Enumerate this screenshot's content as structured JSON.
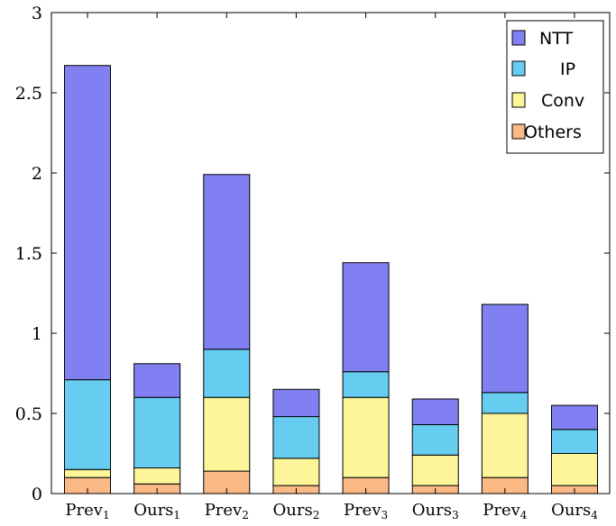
{
  "chart_data": {
    "type": "bar",
    "stacked": true,
    "categories": [
      {
        "base": "Prev",
        "sub": "1"
      },
      {
        "base": "Ours",
        "sub": "1"
      },
      {
        "base": "Prev",
        "sub": "2"
      },
      {
        "base": "Ours",
        "sub": "2"
      },
      {
        "base": "Prev",
        "sub": "3"
      },
      {
        "base": "Ours",
        "sub": "3"
      },
      {
        "base": "Prev",
        "sub": "4"
      },
      {
        "base": "Ours",
        "sub": "4"
      }
    ],
    "series": [
      {
        "name": "Others",
        "color": "#fbb986",
        "values": [
          0.1,
          0.06,
          0.14,
          0.05,
          0.1,
          0.05,
          0.1,
          0.05
        ]
      },
      {
        "name": "Conv",
        "color": "#fdf59a",
        "values": [
          0.05,
          0.1,
          0.46,
          0.17,
          0.5,
          0.19,
          0.4,
          0.2
        ]
      },
      {
        "name": "IP",
        "color": "#66ccf0",
        "values": [
          0.56,
          0.44,
          0.3,
          0.26,
          0.16,
          0.19,
          0.13,
          0.15
        ]
      },
      {
        "name": "NTT",
        "color": "#8080f2",
        "values": [
          1.96,
          0.21,
          1.09,
          0.17,
          0.68,
          0.16,
          0.55,
          0.15
        ]
      }
    ],
    "legend_order": [
      "NTT",
      "IP",
      "Conv",
      "Others"
    ],
    "legend_position": "top-right",
    "ylim": [
      0,
      3
    ],
    "yticks": [
      "0",
      "0.5",
      "1",
      "1.5",
      "2",
      "2.5",
      "3"
    ],
    "ytick_values": [
      0,
      0.5,
      1,
      1.5,
      2,
      2.5,
      3
    ],
    "grid": false,
    "title": "",
    "xlabel": "",
    "ylabel": ""
  }
}
